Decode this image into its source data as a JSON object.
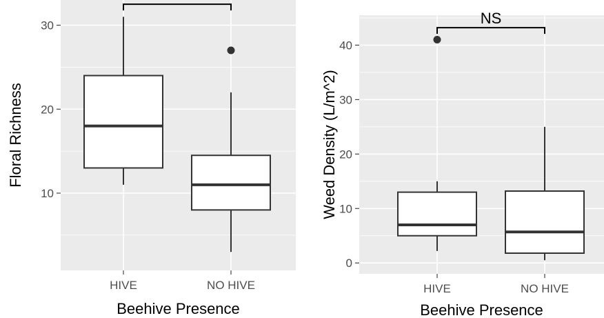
{
  "chart_data": [
    {
      "type": "box",
      "xlabel": "Beehive Presence",
      "ylabel": "Floral Richness",
      "categories": [
        "HIVE",
        "NO HIVE"
      ],
      "ylim": [
        0.8,
        33
      ],
      "yticks": [
        10,
        20,
        30
      ],
      "boxes": [
        {
          "category": "HIVE",
          "whisker_low": 11,
          "q1": 13,
          "median": 18,
          "q3": 24,
          "whisker_high": 31,
          "outliers": []
        },
        {
          "category": "NO HIVE",
          "whisker_low": 3,
          "q1": 8,
          "median": 11,
          "q3": 14.5,
          "whisker_high": 22,
          "outliers": [
            27
          ]
        }
      ],
      "significance": {
        "label": "*",
        "y": 32.5
      },
      "grid": true
    },
    {
      "type": "box",
      "xlabel": "Beehive Presence",
      "ylabel": "Weed Density (L/m^2)",
      "categories": [
        "HIVE",
        "NO HIVE"
      ],
      "ylim": [
        -2,
        45.5
      ],
      "yticks": [
        0,
        10,
        20,
        30,
        40
      ],
      "boxes": [
        {
          "category": "HIVE",
          "whisker_low": 2.2,
          "q1": 5,
          "median": 7,
          "q3": 13,
          "whisker_high": 15,
          "outliers": [
            41
          ]
        },
        {
          "category": "NO HIVE",
          "whisker_low": 0.5,
          "q1": 1.8,
          "median": 5.7,
          "q3": 13.2,
          "whisker_high": 25,
          "outliers": []
        }
      ],
      "significance": {
        "label": "NS",
        "y": 43.2
      },
      "grid": true
    }
  ]
}
